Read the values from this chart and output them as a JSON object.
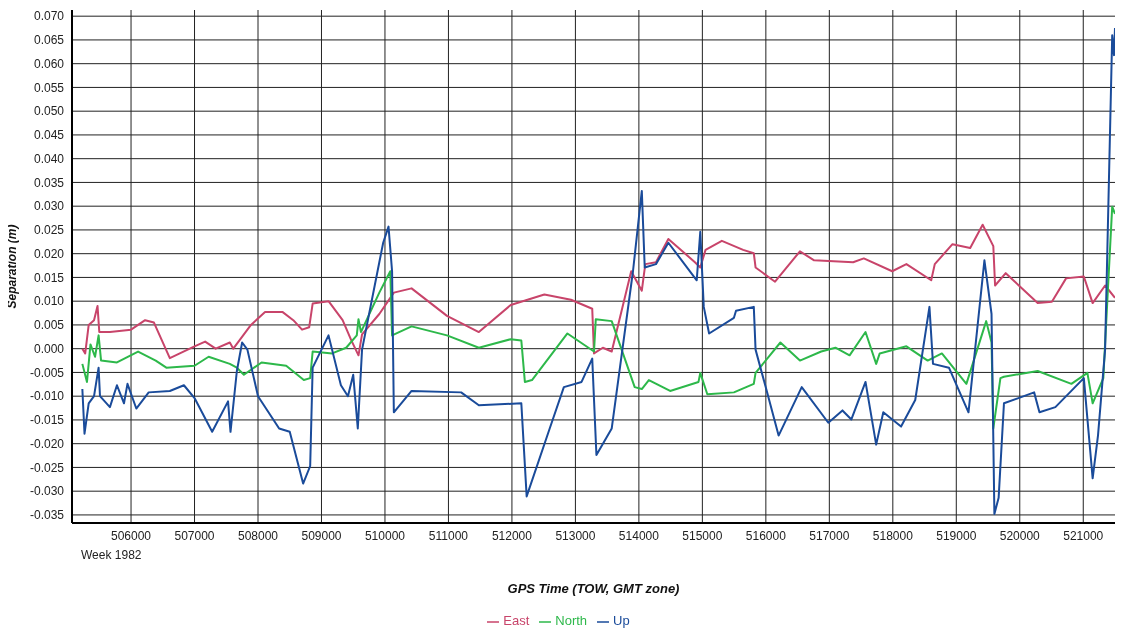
{
  "chart_data": {
    "type": "line",
    "xlabel": "GPS Time (TOW, GMT zone)",
    "ylabel": "Separation (m)",
    "annotations": [
      "Week 1982"
    ],
    "xlim": [
      505070,
      521500
    ],
    "xticks": [
      506000,
      507000,
      508000,
      509000,
      510000,
      511000,
      512000,
      513000,
      514000,
      515000,
      516000,
      517000,
      518000,
      519000,
      520000,
      521000
    ],
    "ylim": [
      -0.0367,
      0.0713
    ],
    "yticks": [
      {
        "value": -0.035,
        "label": "-0.035"
      },
      {
        "value": -0.03,
        "label": "-0.030"
      },
      {
        "value": -0.025,
        "label": "-0.025"
      },
      {
        "value": -0.02,
        "label": "-0.020"
      },
      {
        "value": -0.015,
        "label": "-0.015"
      },
      {
        "value": -0.01,
        "label": "-0.010"
      },
      {
        "value": -0.005,
        "label": "-0.005"
      },
      {
        "value": 0,
        "label": "0.000"
      },
      {
        "value": 0.005,
        "label": "0.005"
      },
      {
        "value": 0.01,
        "label": "0.010"
      },
      {
        "value": 0.015,
        "label": "0.015"
      },
      {
        "value": 0.02,
        "label": "0.020"
      },
      {
        "value": 0.025,
        "label": "0.025"
      },
      {
        "value": 0.03,
        "label": "0.030"
      },
      {
        "value": 0.035,
        "label": "0.035"
      },
      {
        "value": 0.04,
        "label": "0.040"
      },
      {
        "value": 0.045,
        "label": "0.045"
      },
      {
        "value": 0.05,
        "label": "0.050"
      },
      {
        "value": 0.055,
        "label": "0.055"
      },
      {
        "value": 0.06,
        "label": "0.060"
      },
      {
        "value": 0.065,
        "label": "0.065"
      },
      {
        "value": 0.07,
        "label": "0.070"
      }
    ],
    "grid": true,
    "legend": "bottom",
    "marker": "none",
    "line_style": "solid",
    "series": [
      {
        "name": "East",
        "color": "#c8446a",
        "x": [
          505233,
          505278,
          505333,
          505417,
          505472,
          505500,
          505667,
          506000,
          506222,
          506361,
          506611,
          507000,
          507167,
          507333,
          507556,
          507611,
          507889,
          508111,
          508389,
          508556,
          508694,
          508806,
          508861,
          509111,
          509333,
          509472,
          509583,
          509639,
          509911,
          510140,
          510419,
          510977,
          511479,
          511981,
          512511,
          512930,
          513265,
          513293,
          513432,
          513572,
          513879,
          514046,
          514101,
          514269,
          514464,
          514883,
          514967,
          515050,
          515307,
          515642,
          515810,
          515838,
          516145,
          516537,
          516760,
          517375,
          517543,
          517990,
          518214,
          518605,
          518661,
          518940,
          519219,
          519415,
          519583,
          519611,
          519779,
          520282,
          520506,
          520729,
          521009,
          521148,
          521344,
          521500
        ],
        "values": [
          0.0,
          -0.001,
          0.005,
          0.006,
          0.009,
          0.0035,
          0.0035,
          0.004,
          0.006,
          0.0055,
          -0.002,
          0.0005,
          0.0015,
          0.0,
          0.0013,
          0.0,
          0.005,
          0.0077,
          0.0077,
          0.006,
          0.004,
          0.0045,
          0.0095,
          0.01,
          0.006,
          0.0017,
          -0.0014,
          0.003,
          0.0073,
          0.0118,
          0.0127,
          0.0069,
          0.0035,
          0.0092,
          0.0114,
          0.0103,
          0.0084,
          -0.001,
          0.0002,
          -0.0006,
          0.0163,
          0.0122,
          0.0178,
          0.0182,
          0.0231,
          0.0182,
          0.0171,
          0.0208,
          0.0227,
          0.0208,
          0.0201,
          0.0171,
          0.0141,
          0.0205,
          0.0186,
          0.0182,
          0.019,
          0.0163,
          0.0178,
          0.0144,
          0.0178,
          0.022,
          0.0212,
          0.0261,
          0.0216,
          0.0133,
          0.0159,
          0.0096,
          0.0099,
          0.0148,
          0.0152,
          0.0096,
          0.0133,
          0.0107
        ]
      },
      {
        "name": "North",
        "color": "#2db84a",
        "x": [
          505233,
          505306,
          505361,
          505433,
          505489,
          505528,
          505778,
          506111,
          506389,
          506556,
          507000,
          507222,
          507556,
          507667,
          507778,
          508056,
          508444,
          508722,
          508822,
          508861,
          509167,
          509389,
          509556,
          509583,
          509622,
          509911,
          510084,
          510112,
          510419,
          510977,
          511479,
          511981,
          512148,
          512204,
          512316,
          512874,
          513293,
          513321,
          513572,
          513934,
          514046,
          514157,
          514492,
          514939,
          514967,
          515078,
          515497,
          515810,
          515838,
          516229,
          516537,
          516872,
          517096,
          517319,
          517570,
          517738,
          517794,
          518214,
          518549,
          518773,
          519159,
          519471,
          519555,
          519583,
          519695,
          519750,
          520282,
          520813,
          521065,
          521148,
          521316,
          521456,
          521500
        ],
        "values": [
          -0.0032,
          -0.007,
          0.0009,
          -0.0017,
          0.0028,
          -0.0025,
          -0.0029,
          -0.0006,
          -0.0025,
          -0.004,
          -0.0036,
          -0.0017,
          -0.0032,
          -0.004,
          -0.0055,
          -0.0029,
          -0.0036,
          -0.0066,
          -0.0062,
          -0.0006,
          -0.001,
          0.0002,
          0.0028,
          0.0062,
          0.0035,
          0.0118,
          0.0163,
          0.0028,
          0.0047,
          0.0028,
          0.0002,
          0.002,
          0.0017,
          -0.007,
          -0.0066,
          0.0032,
          -0.0006,
          0.0062,
          0.0058,
          -0.0081,
          -0.0085,
          -0.0066,
          -0.0089,
          -0.007,
          -0.0051,
          -0.0096,
          -0.0092,
          -0.0074,
          -0.0051,
          0.0013,
          -0.0025,
          -0.0006,
          0.0002,
          -0.0014,
          0.0035,
          -0.0032,
          -0.001,
          0.0005,
          -0.0025,
          -0.001,
          -0.0074,
          0.0058,
          0.0013,
          -0.0168,
          -0.0062,
          -0.0059,
          -0.0047,
          -0.0074,
          -0.0051,
          -0.0115,
          -0.0062,
          0.0299,
          0.0284
        ]
      },
      {
        "name": "Up",
        "color": "#1a4b9a",
        "x": [
          505233,
          505267,
          505333,
          505417,
          505489,
          505511,
          505667,
          505778,
          505889,
          505944,
          506083,
          506278,
          506611,
          506833,
          507000,
          507278,
          507528,
          507567,
          507667,
          507750,
          507833,
          508000,
          508333,
          508500,
          508711,
          508822,
          508861,
          509111,
          509306,
          509417,
          509500,
          509572,
          509639,
          509911,
          509972,
          510056,
          510112,
          510140,
          510419,
          511200,
          511479,
          512148,
          512232,
          512595,
          512818,
          513097,
          513265,
          513331,
          513572,
          513907,
          514046,
          514092,
          514269,
          514464,
          514911,
          514967,
          515022,
          515106,
          515497,
          515530,
          515810,
          515838,
          516006,
          516201,
          516565,
          516984,
          517207,
          517347,
          517570,
          517738,
          517850,
          518130,
          518353,
          518577,
          518633,
          518884,
          519192,
          519443,
          519555,
          519600,
          519667,
          519751,
          520226,
          520310,
          520561,
          521009,
          521148,
          521232,
          521344,
          521456,
          521484,
          521500
        ],
        "values": [
          -0.0085,
          -0.0179,
          -0.0115,
          -0.01,
          -0.004,
          -0.01,
          -0.0123,
          -0.0077,
          -0.0115,
          -0.0074,
          -0.0126,
          -0.0092,
          -0.0089,
          -0.0077,
          -0.0104,
          -0.0175,
          -0.0111,
          -0.0175,
          -0.0047,
          0.0013,
          -0.0002,
          -0.01,
          -0.0168,
          -0.0175,
          -0.0284,
          -0.0247,
          -0.004,
          0.0028,
          -0.0077,
          -0.01,
          -0.0055,
          -0.0168,
          -0.0002,
          0.0182,
          0.0223,
          0.0257,
          0.0163,
          -0.0134,
          -0.0089,
          -0.0092,
          -0.0119,
          -0.0115,
          -0.0311,
          -0.0168,
          -0.0081,
          -0.007,
          -0.0021,
          -0.0224,
          -0.0168,
          0.0163,
          0.0332,
          0.0171,
          0.0178,
          0.0223,
          0.0144,
          0.0246,
          0.0088,
          0.0032,
          0.0065,
          0.008,
          0.0088,
          -0.0002,
          -0.0085,
          -0.0183,
          -0.0081,
          -0.0156,
          -0.013,
          -0.0149,
          -0.007,
          -0.0202,
          -0.0134,
          -0.0164,
          -0.0108,
          0.0088,
          -0.0032,
          -0.004,
          -0.0134,
          0.0186,
          0.0073,
          -0.0348,
          -0.0314,
          -0.0115,
          -0.0092,
          -0.0134,
          -0.0123,
          -0.0062,
          -0.0273,
          -0.0183,
          -0.0002,
          0.066,
          0.0618,
          0.0675
        ]
      }
    ]
  }
}
